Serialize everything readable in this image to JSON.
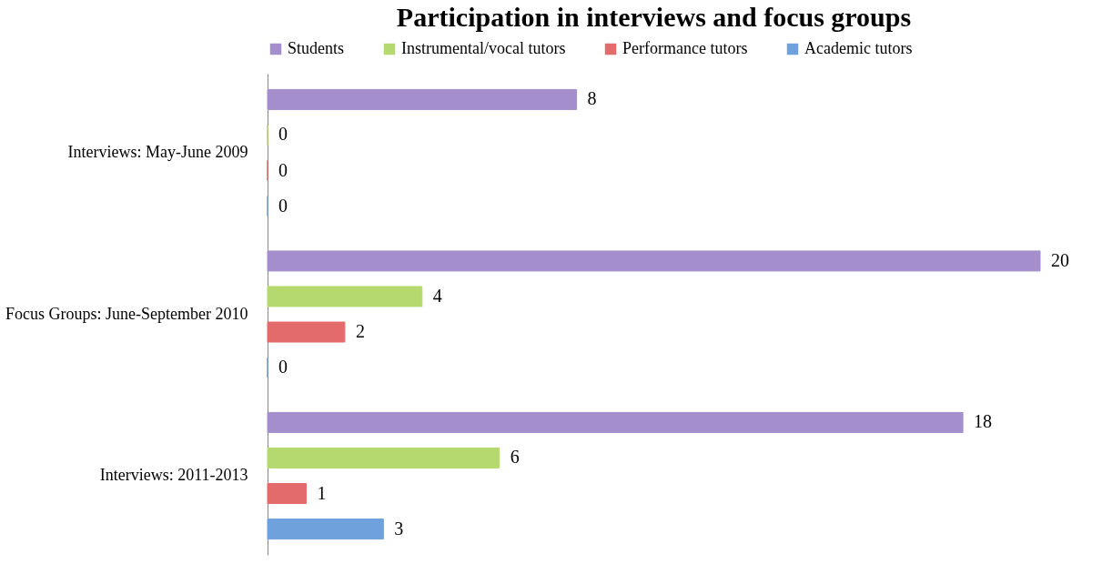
{
  "chart_data": {
    "type": "bar",
    "orientation": "horizontal",
    "title": "Participation in interviews and focus groups",
    "categories": [
      "Interviews: May-June 2009",
      "Focus Groups: June-September 2010",
      "Interviews: 2011-2013"
    ],
    "series": [
      {
        "name": "Students",
        "color": "#a48fcc",
        "values": [
          8,
          20,
          18
        ]
      },
      {
        "name": "Instrumental/vocal tutors",
        "color": "#b6d96f",
        "values": [
          0,
          4,
          6
        ]
      },
      {
        "name": "Performance tutors",
        "color": "#e46b6b",
        "values": [
          0,
          2,
          1
        ]
      },
      {
        "name": "Academic tutors",
        "color": "#6fa2dd",
        "values": [
          0,
          0,
          3
        ]
      }
    ],
    "data_labels": true,
    "legend": "top",
    "grid": false
  }
}
